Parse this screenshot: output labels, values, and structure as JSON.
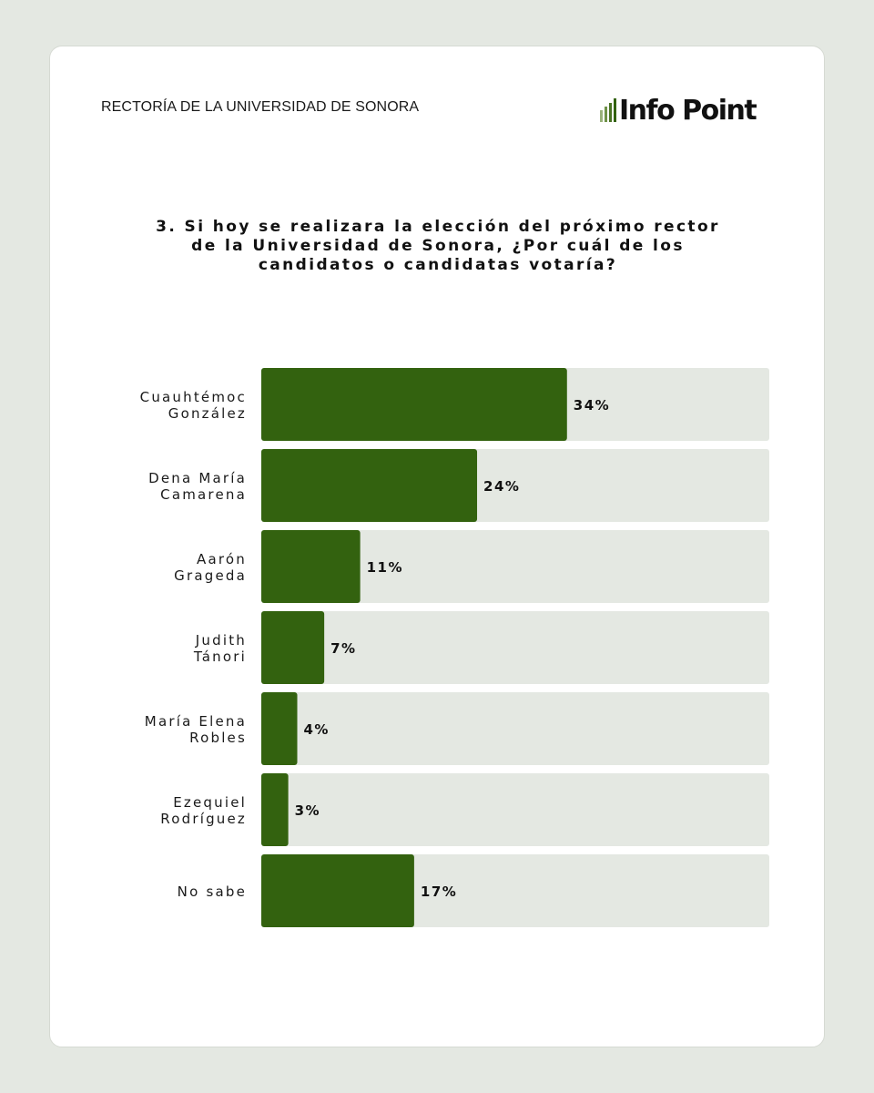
{
  "header": {
    "source": "RECTORÍA DE LA UNIVERSIDAD DE SONORA",
    "logo_text": "Info Point"
  },
  "colors": {
    "bar": "#33620f",
    "track": "#e4e8e2",
    "logo_bars": [
      "#9ab27c",
      "#6f9248",
      "#4a7324",
      "#33620f"
    ]
  },
  "chart_data": {
    "type": "bar",
    "orientation": "horizontal",
    "title": "3. Si hoy se realizara la elección del próximo rector de la Universidad de Sonora, ¿Por cuál de los candidatos o candidatas votaría?",
    "title_lines": [
      "3. Si hoy se realizara la elección del próximo rector",
      "de la Universidad de Sonora, ¿Por cuál de los",
      "candidatos o candidatas votaría?"
    ],
    "categories": [
      [
        "Cuauhtémoc",
        "González"
      ],
      [
        "Dena María",
        "Camarena"
      ],
      [
        "Aarón",
        "Grageda"
      ],
      [
        "Judith",
        "Tánori"
      ],
      [
        "María Elena",
        "Robles"
      ],
      [
        "Ezequiel",
        "Rodríguez"
      ],
      [
        "No sabe"
      ]
    ],
    "values": [
      34,
      24,
      11,
      7,
      4,
      3,
      17
    ],
    "value_labels": [
      "34%",
      "24%",
      "11%",
      "7%",
      "4%",
      "3%",
      "17%"
    ],
    "xlim": [
      0,
      56.5
    ],
    "unit": "%",
    "grid": false,
    "legend": "none"
  }
}
